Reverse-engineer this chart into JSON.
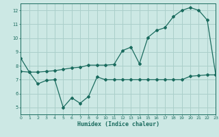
{
  "xlabel": "Humidex (Indice chaleur)",
  "bg_color": "#cce8e4",
  "grid_color": "#aacfca",
  "line_color": "#1a6b5e",
  "curve1_x": [
    0,
    1,
    2,
    3,
    4,
    5,
    6,
    7,
    8,
    9,
    10,
    11,
    12,
    13,
    14,
    15,
    16,
    17,
    18,
    19,
    20,
    21,
    22,
    23
  ],
  "curve1_y": [
    8.55,
    7.55,
    7.55,
    7.6,
    7.65,
    7.75,
    7.85,
    7.9,
    8.05,
    8.05,
    8.05,
    8.1,
    9.1,
    9.35,
    8.15,
    10.05,
    10.55,
    10.75,
    11.55,
    12.0,
    12.2,
    12.0,
    11.3,
    7.35
  ],
  "curve2_x": [
    0,
    1,
    2,
    3,
    4,
    5,
    6,
    7,
    8,
    9,
    10,
    11,
    12,
    13,
    14,
    15,
    16,
    17,
    18,
    19,
    20,
    21,
    22,
    23
  ],
  "curve2_y": [
    7.6,
    7.55,
    6.7,
    6.95,
    7.0,
    5.0,
    5.7,
    5.3,
    5.8,
    7.2,
    7.0,
    7.0,
    7.0,
    7.0,
    7.0,
    7.0,
    7.0,
    7.0,
    7.0,
    7.0,
    7.25,
    7.3,
    7.35,
    7.35
  ],
  "xlim": [
    0,
    23
  ],
  "ylim": [
    4.5,
    12.5
  ],
  "yticks": [
    5,
    6,
    7,
    8,
    9,
    10,
    11,
    12
  ],
  "xticks": [
    0,
    1,
    2,
    3,
    4,
    5,
    6,
    7,
    8,
    9,
    10,
    11,
    12,
    13,
    14,
    15,
    16,
    17,
    18,
    19,
    20,
    21,
    22,
    23
  ],
  "marker": "D",
  "markersize": 2.0,
  "linewidth": 0.9
}
